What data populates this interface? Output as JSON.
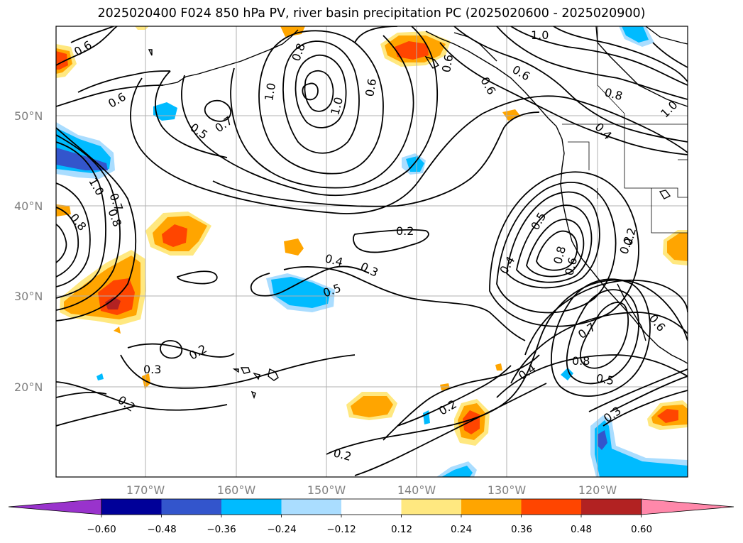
{
  "title": "2025020400 F024 850 hPa PV, river basin precipitation PC (2025020600 - 2025020900)",
  "lat_labels": [
    "50°N",
    "40°N",
    "30°N",
    "20°N"
  ],
  "lon_labels": [
    "170°W",
    "160°W",
    "150°W",
    "140°W",
    "130°W",
    "120°W"
  ],
  "colorbar": {
    "tick_labels": [
      "−0.60",
      "−0.48",
      "−0.36",
      "−0.24",
      "−0.12",
      "0.12",
      "0.24",
      "0.36",
      "0.48",
      "0.60"
    ],
    "colors": [
      "#9933cc",
      "#000099",
      "#3355cc",
      "#00bbff",
      "#aaddff",
      "#ffffff",
      "#ffe880",
      "#ffa500",
      "#ff4500",
      "#b22222",
      "#ff88aa"
    ]
  },
  "contour_labels": [
    "0.6",
    "0.6",
    "0.7",
    "0.5",
    "0.8",
    "1.0",
    "1.0",
    "0.6",
    "0.6",
    "1.0",
    "0.6",
    "0.6",
    "0.8",
    "0.4",
    "1.0",
    "1.0",
    "0.7",
    "0.8",
    "0.8",
    "0.2",
    "0.4",
    "0.3",
    "0.5",
    "0.4",
    "0.5",
    "0.8",
    "0.6",
    "0.2",
    "0.2",
    "0.3",
    "0.2",
    "0.2",
    "0.7",
    "0.8",
    "0.5",
    "0.4",
    "0.3",
    "0.6",
    "0.2",
    "0.2"
  ]
}
